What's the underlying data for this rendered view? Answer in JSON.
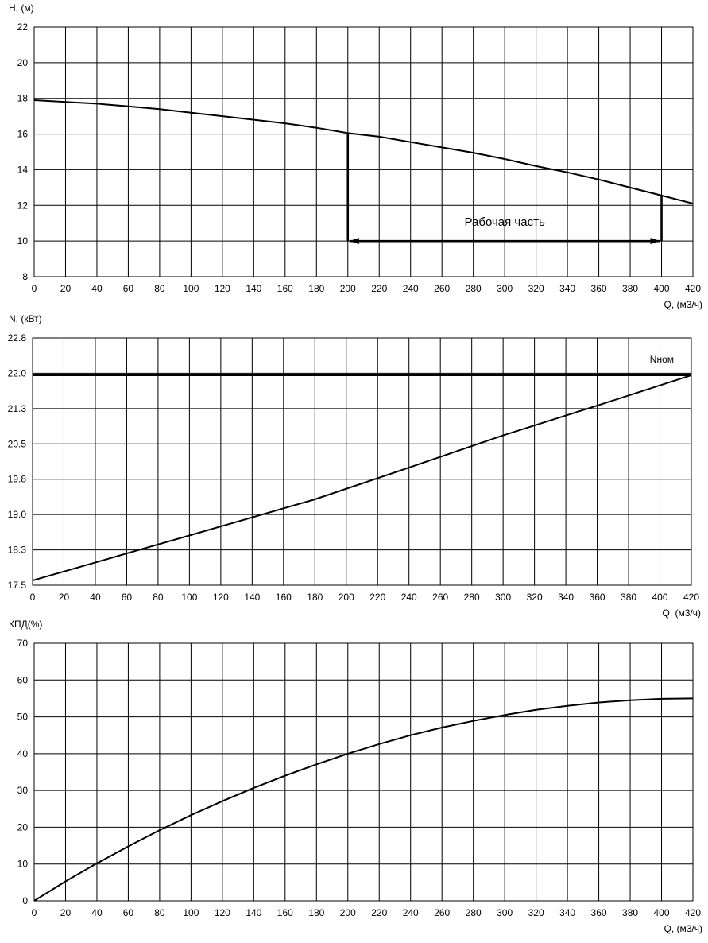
{
  "chart_data": [
    {
      "type": "line",
      "ylabel": "H, (м)",
      "xlabel": "Q, (м3/ч)",
      "xlim": [
        0,
        420
      ],
      "ylim": [
        8,
        22
      ],
      "x_ticks": [
        0,
        20,
        40,
        60,
        80,
        100,
        120,
        140,
        160,
        180,
        200,
        220,
        240,
        260,
        280,
        300,
        320,
        340,
        360,
        380,
        400,
        420
      ],
      "y_ticks": [
        "8",
        "10",
        "12",
        "14",
        "16",
        "18",
        "20",
        "22"
      ],
      "grid": true,
      "series": [
        {
          "x": [
            0,
            20,
            40,
            60,
            80,
            100,
            120,
            140,
            160,
            180,
            200,
            220,
            240,
            260,
            280,
            300,
            320,
            340,
            360,
            380,
            400,
            420
          ],
          "y": [
            17.9,
            17.8,
            17.7,
            17.55,
            17.4,
            17.2,
            17.0,
            16.8,
            16.6,
            16.35,
            16.05,
            15.85,
            15.55,
            15.25,
            14.95,
            14.6,
            14.2,
            13.85,
            13.45,
            13.0,
            12.55,
            12.1
          ]
        }
      ],
      "annotations": {
        "working_range": {
          "label": "Рабочая часть",
          "x_start": 200,
          "x_end": 400,
          "y_arrow": 10,
          "y_top_start": 16.05,
          "y_top_end": 12.55
        }
      }
    },
    {
      "type": "line",
      "ylabel": "N, (кВт)",
      "xlabel": "Q, (м3/ч)",
      "xlim": [
        0,
        420
      ],
      "ylim": [
        17.5,
        22.8
      ],
      "x_ticks": [
        0,
        20,
        40,
        60,
        80,
        100,
        120,
        140,
        160,
        180,
        200,
        220,
        240,
        260,
        280,
        300,
        320,
        340,
        360,
        380,
        400,
        420
      ],
      "y_ticks": [
        "17.5",
        "18.3",
        "19.0",
        "19.8",
        "20.5",
        "21.3",
        "22.0",
        "22.8"
      ],
      "grid": true,
      "series": [
        {
          "x": [
            0,
            60,
            120,
            180,
            240,
            300,
            360,
            420
          ],
          "y": [
            17.6,
            18.18,
            18.76,
            19.34,
            20.02,
            20.71,
            21.35,
            22.0
          ]
        }
      ],
      "reference_line": {
        "label": "Nном",
        "y": 22.0
      }
    },
    {
      "type": "line",
      "ylabel": "КПД(%)",
      "xlabel": "Q, (м3/ч)",
      "xlim": [
        0,
        420
      ],
      "ylim": [
        0,
        70
      ],
      "x_ticks": [
        0,
        20,
        40,
        60,
        80,
        100,
        120,
        140,
        160,
        180,
        200,
        220,
        240,
        260,
        280,
        300,
        320,
        340,
        360,
        380,
        400,
        420
      ],
      "y_ticks": [
        "0",
        "10",
        "20",
        "30",
        "40",
        "50",
        "60",
        "70"
      ],
      "grid": true,
      "series": [
        {
          "x": [
            0,
            20,
            40,
            60,
            80,
            100,
            120,
            140,
            160,
            180,
            200,
            220,
            240,
            260,
            280,
            300,
            320,
            340,
            360,
            380,
            400,
            420
          ],
          "y": [
            0,
            5.3,
            10.2,
            14.8,
            19.2,
            23.3,
            27.1,
            30.7,
            34.0,
            37.1,
            40.0,
            42.6,
            45.0,
            47.1,
            48.9,
            50.5,
            51.9,
            53.0,
            53.9,
            54.5,
            54.9,
            55.0
          ]
        }
      ]
    }
  ]
}
